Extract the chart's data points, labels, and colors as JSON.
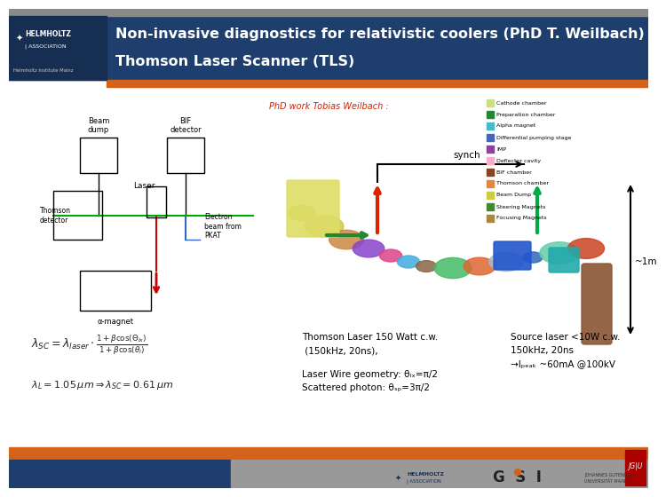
{
  "title_line1": "Non-invasive diagnostics for relativistic coolers (PhD T. Weilbach)",
  "title_line2": "Thomson Laser Scanner (TLS)",
  "header_bg_color": "#1e3f6e",
  "header_dark_color": "#162e52",
  "header_text_color": "#ffffff",
  "top_bar_color": "#8a8a8a",
  "orange_bar_color": "#d4621a",
  "phd_label": "PhD work Tobias Weilbach :",
  "phd_label_color": "#cc2200",
  "synch_label": "synch",
  "tls_desc1": "Thomson Laser 150 Watt c.w.",
  "tls_desc2": " (150kHz, 20ns),",
  "tls_desc3": "Laser Wire geometry: θₗₓ=π/2",
  "tls_desc4": "Scattered photon: θₛₚ=3π/2",
  "source_laser1": "Source laser <10W c.w.",
  "source_laser2": "150kHz, 20ns",
  "source_laser3": "→Iₚₑₐₖ ~60mA @100kV",
  "bg_color": "#ffffff",
  "content_text_color": "#222222",
  "footer_orange_color": "#d4621a",
  "footer_blue_color": "#1e3f6e",
  "footer_gray_color": "#999999",
  "one_m_label": "~1m"
}
